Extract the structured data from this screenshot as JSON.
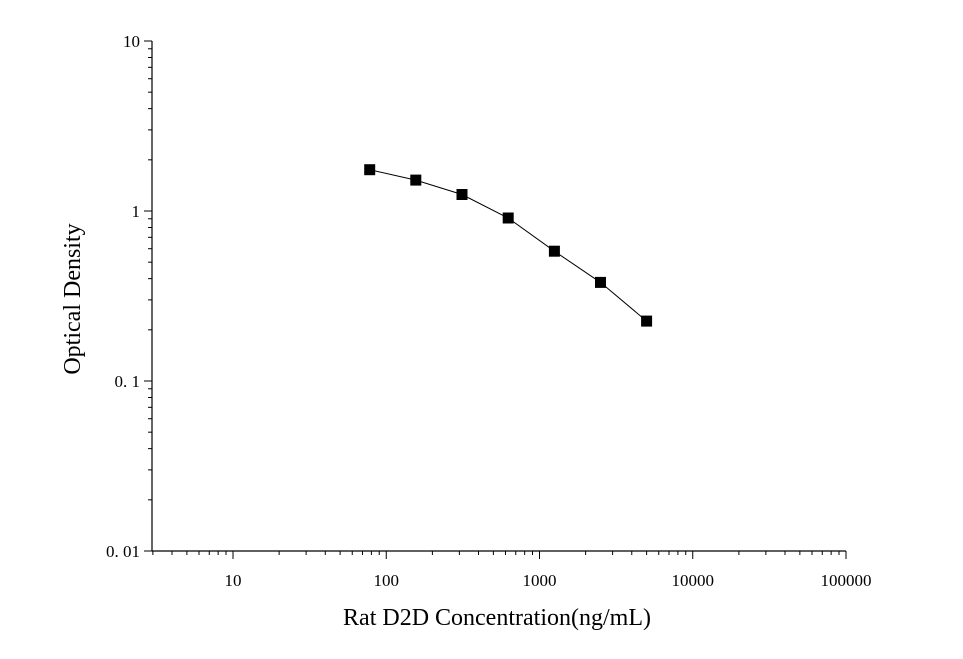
{
  "chart_data": {
    "type": "line",
    "xlabel": "Rat D2D Concentration(ng/mL)",
    "ylabel": "Optical Density",
    "x_scale": "log",
    "y_scale": "log",
    "xlim": [
      3,
      100000
    ],
    "ylim": [
      0.01,
      10
    ],
    "x_ticks": [
      {
        "value": 10,
        "label": "10"
      },
      {
        "value": 100,
        "label": "100"
      },
      {
        "value": 1000,
        "label": "1000"
      },
      {
        "value": 10000,
        "label": "10000"
      },
      {
        "value": 100000,
        "label": "100000"
      }
    ],
    "y_ticks": [
      {
        "value": 0.01,
        "label": "0. 01"
      },
      {
        "value": 0.1,
        "label": "0. 1"
      },
      {
        "value": 1,
        "label": "1"
      },
      {
        "value": 10,
        "label": "10"
      }
    ],
    "grid": false,
    "marker": "square",
    "series": [
      {
        "x": [
          78,
          156,
          312,
          625,
          1250,
          2500,
          5000
        ],
        "y": [
          1.75,
          1.52,
          1.25,
          0.91,
          0.58,
          0.38,
          0.225
        ]
      }
    ]
  }
}
